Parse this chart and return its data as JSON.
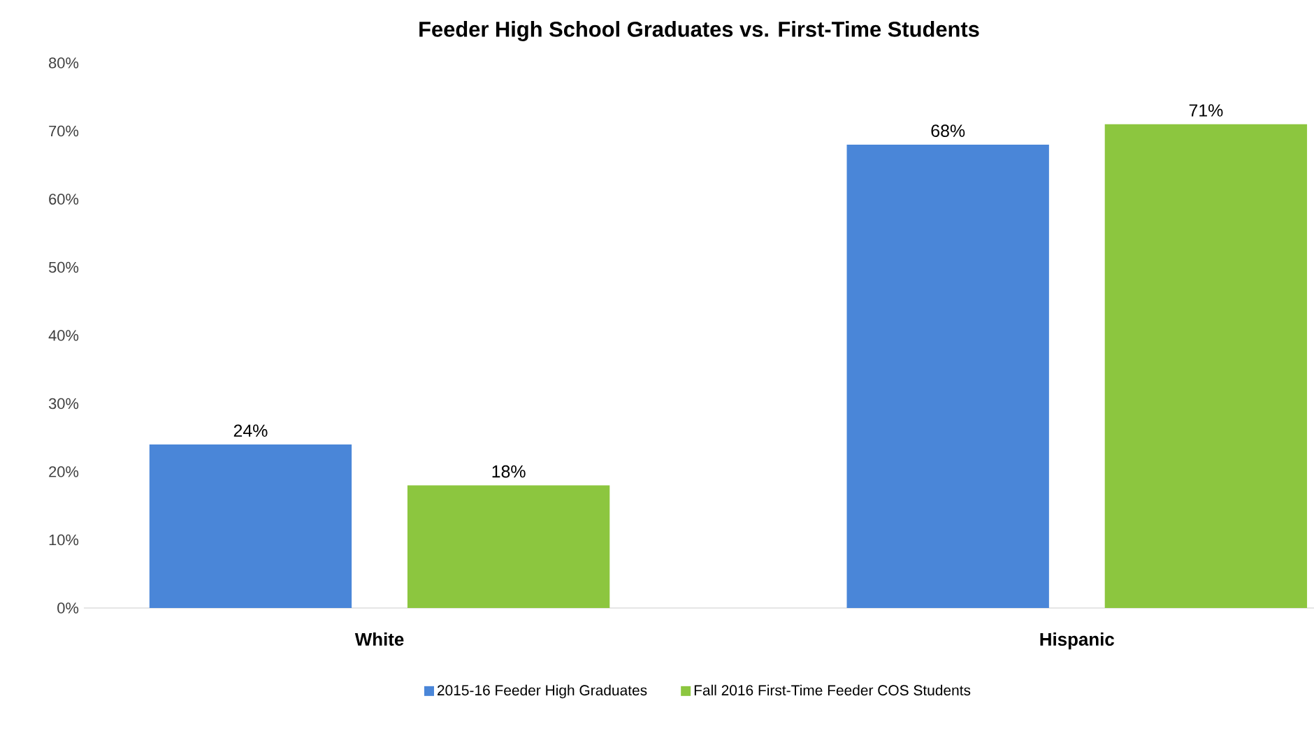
{
  "chart_data": {
    "type": "bar",
    "title": "Feeder High School Graduates vs. First-Time Students",
    "categories": [
      "White",
      "Hispanic"
    ],
    "series": [
      {
        "name": "2015-16 Feeder High Graduates",
        "color": "#4a86d8",
        "values": [
          24,
          68
        ],
        "value_labels": [
          "24%",
          "68%"
        ]
      },
      {
        "name": "Fall 2016 First-Time Feeder COS Students",
        "color": "#8cc63f",
        "values": [
          18,
          71
        ],
        "value_labels": [
          "18%",
          "71%"
        ]
      }
    ],
    "ylim": [
      0,
      80
    ],
    "yticks": [
      {
        "value": 0,
        "label": "0%"
      },
      {
        "value": 10,
        "label": "10%"
      },
      {
        "value": 20,
        "label": "20%"
      },
      {
        "value": 30,
        "label": "30%"
      },
      {
        "value": 40,
        "label": "40%"
      },
      {
        "value": 50,
        "label": "50%"
      },
      {
        "value": 60,
        "label": "60%"
      },
      {
        "value": 70,
        "label": "70%"
      },
      {
        "value": 80,
        "label": "80%"
      }
    ],
    "grid": false,
    "legend": "bottom"
  }
}
